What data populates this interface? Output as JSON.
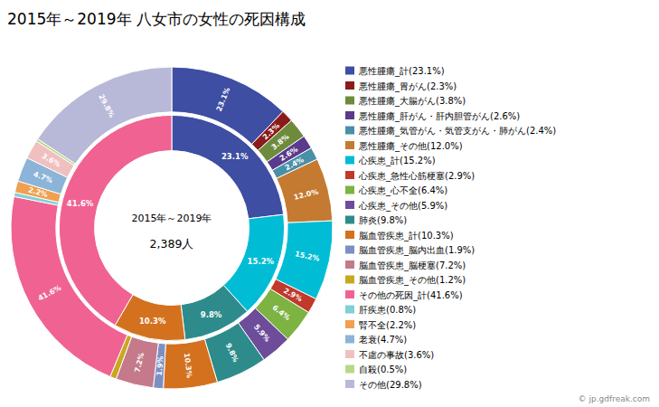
{
  "chart_data": [
    {
      "type": "pie",
      "title": "2015年～2019年 八女市の女性の死因構成",
      "annotations": [
        "2015年～2019年",
        "2,389人",
        "© jp.gdfreak.com"
      ],
      "categories": [
        "悪性腫瘍_計(23.1%)",
        "悪性腫瘍_胃がん(2.3%)",
        "悪性腫瘍_大腸がん(3.8%)",
        "悪性腫瘍_肝がん・肝内胆管がん(2.6%)",
        "悪性腫瘍_気管がん・気管支がん・肺がん(2.4%)",
        "悪性腫瘍_その他(12.0%)",
        "心疾患_計(15.2%)",
        "心疾患_急性心筋梗塞(2.9%)",
        "心疾患_心不全(6.4%)",
        "心疾患_その他(5.9%)",
        "肺炎(9.8%)",
        "脳血管疾患_計(10.3%)",
        "脳血管疾患_脳内出血(1.9%)",
        "脳血管疾患_脳梗塞(7.2%)",
        "脳血管疾患_その他(1.2%)",
        "その他の死因_計(41.6%)",
        "肝疾患(0.8%)",
        "腎不全(2.2%)",
        "老衰(4.7%)",
        "不慮の事故(3.6%)",
        "自殺(0.5%)",
        "その他(29.8%)"
      ],
      "values": [
        23.1,
        2.3,
        3.8,
        2.6,
        2.4,
        12.0,
        15.2,
        2.9,
        6.4,
        5.9,
        9.8,
        10.3,
        1.9,
        7.2,
        1.2,
        41.6,
        0.8,
        2.2,
        4.7,
        3.6,
        0.5,
        29.8
      ],
      "value_labels": [
        "23.1%",
        "2.3%",
        "3.8%",
        "2.6%",
        "2.4%",
        "12.0%",
        "15.2%",
        "2.9%",
        "6.4%",
        "5.9%",
        "9.8%",
        "10.3%",
        "1.9%",
        "7.2%",
        null,
        "41.6%",
        null,
        "2.2%",
        "4.7%",
        "3.6%",
        null,
        "29.8%"
      ],
      "colors": [
        "#3d4ea3",
        "#8b1a1a",
        "#6e8b3d",
        "#5b3a8b",
        "#4a8fa8",
        "#c47a30",
        "#00bcd4",
        "#c0392b",
        "#7cb342",
        "#6d4c99",
        "#2e8b8b",
        "#d4711e",
        "#7b8fc4",
        "#c47a8a",
        "#c8a820",
        "#f06292",
        "#80d0d8",
        "#f0a050",
        "#8cb4d8",
        "#f0c0c0",
        "#b8d888",
        "#b8b8d8"
      ],
      "data_labels": true,
      "legend": "right"
    },
    {
      "type": "pie",
      "values": [
        23.1,
        15.2,
        9.8,
        10.3,
        41.6
      ],
      "value_labels": [
        "23.1%",
        "15.2%",
        "9.8%",
        "10.3%",
        "41.6%"
      ],
      "colors": [
        "#3d4ea3",
        "#00bcd4",
        "#2e8b8b",
        "#d4711e",
        "#f06292"
      ],
      "data_labels": true
    }
  ]
}
